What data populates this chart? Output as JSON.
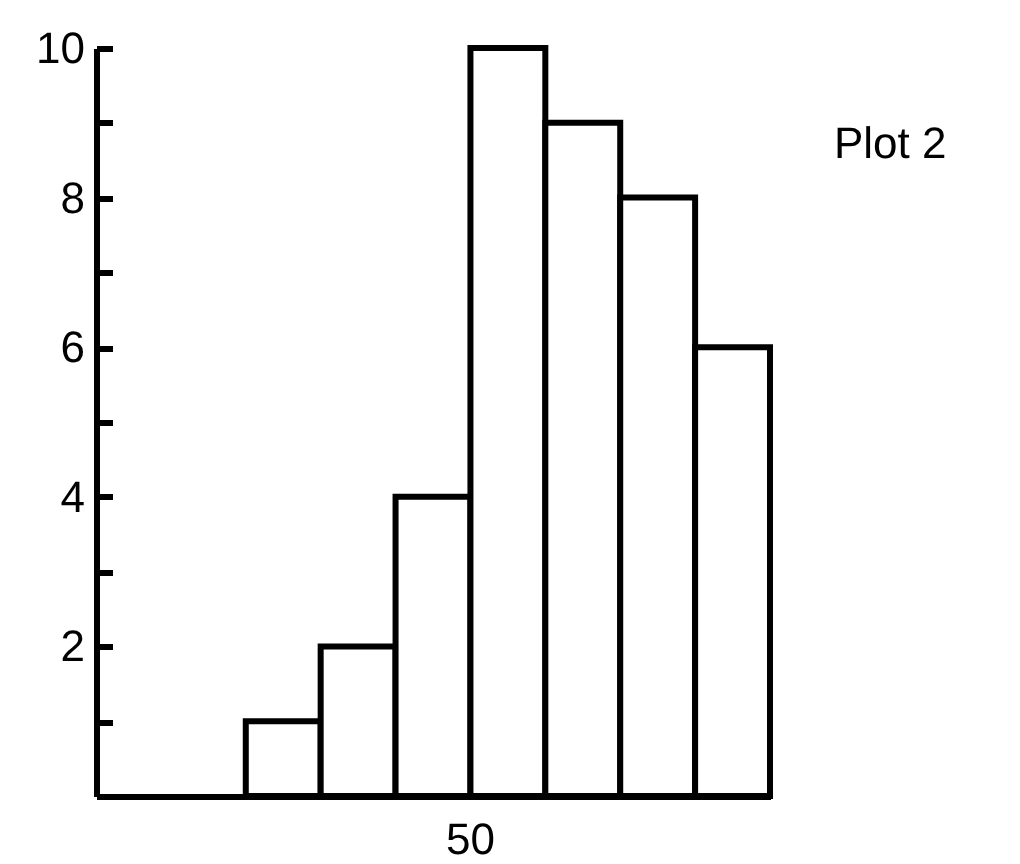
{
  "chart_data": {
    "type": "bar",
    "categories": [
      null,
      null,
      null,
      null,
      null,
      null,
      null,
      null,
      null
    ],
    "values": [
      null,
      null,
      1,
      2,
      4,
      10,
      9,
      8,
      6
    ],
    "color": "#ffffff",
    "ylim": [
      0,
      10
    ],
    "yticks": [
      {
        "value": 1,
        "label": null
      },
      2,
      {
        "value": 3,
        "label": null
      },
      4,
      {
        "value": 5,
        "label": null
      },
      6,
      {
        "value": 7,
        "label": null
      },
      8,
      {
        "value": 9,
        "label": null
      },
      10
    ],
    "annotations": [
      "Plot 2",
      "50"
    ]
  }
}
